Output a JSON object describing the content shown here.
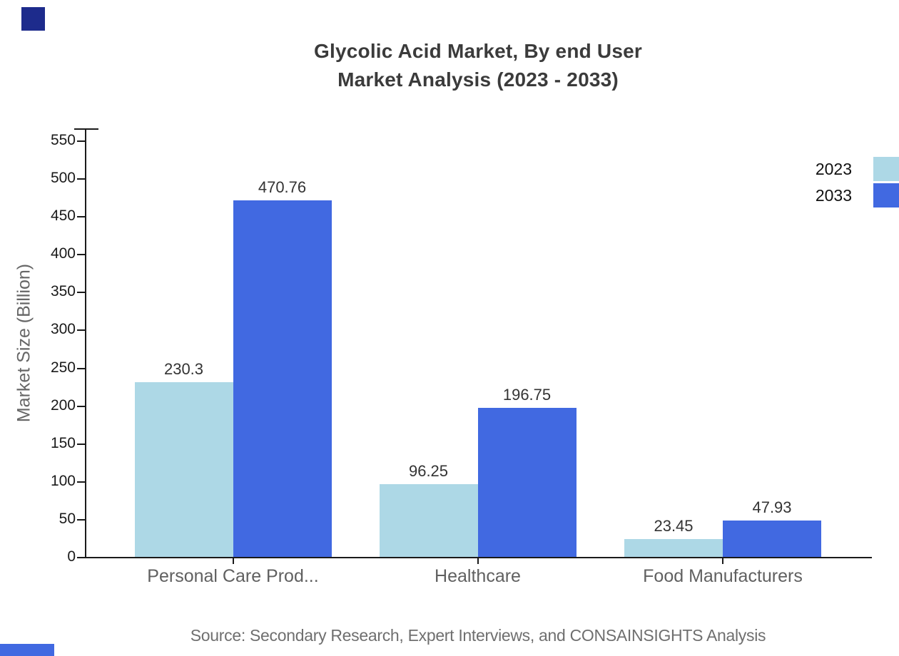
{
  "chart_data": {
    "type": "bar",
    "title_line1": "Glycolic Acid Market, By end User",
    "title_line2": "Market Analysis (2023 - 2033)",
    "categories": [
      "Personal Care Prod...",
      "Healthcare",
      "Food Manufacturers"
    ],
    "series": [
      {
        "name": "2023",
        "color": "#add8e6",
        "values": [
          230.3,
          96.25,
          23.45
        ],
        "labels": [
          "230.3",
          "96.25",
          "23.45"
        ]
      },
      {
        "name": "2033",
        "color": "#4169e1",
        "values": [
          470.76,
          196.75,
          47.93
        ],
        "labels": [
          "470.76",
          "196.75",
          "47.93"
        ]
      }
    ],
    "ylabel": "Market Size (Billion)",
    "ylim": [
      0,
      550
    ],
    "yticks": [
      0,
      50,
      100,
      150,
      200,
      250,
      300,
      350,
      400,
      450,
      500,
      550
    ],
    "grid": false,
    "legend_position": "top-right",
    "source": "Source: Secondary Research, Expert Interviews, and CONSAINSIGHTS Analysis"
  },
  "branding": {
    "square_color": "#1d2b8c",
    "strip_color": "#4169e1"
  }
}
